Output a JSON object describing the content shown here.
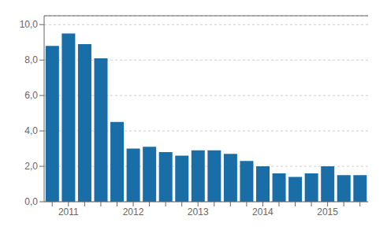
{
  "chart_data": {
    "type": "bar",
    "categories": [
      null,
      "2011",
      null,
      null,
      null,
      "2012",
      null,
      null,
      null,
      "2013",
      null,
      null,
      null,
      "2014",
      null,
      null,
      null,
      "2015",
      null,
      null
    ],
    "values": [
      8.8,
      9.5,
      8.9,
      8.1,
      4.5,
      3.0,
      3.1,
      2.8,
      2.6,
      2.9,
      2.9,
      2.7,
      2.3,
      2.0,
      1.6,
      1.4,
      1.6,
      2.0,
      1.5,
      1.5
    ],
    "color": "#1a6ea8",
    "ylim": [
      0,
      10.5
    ],
    "yticks": [
      {
        "value": 0,
        "label": "0,0"
      },
      {
        "value": 2,
        "label": "2,0"
      },
      {
        "value": 4,
        "label": "4,0"
      },
      {
        "value": 6,
        "label": "6,0"
      },
      {
        "value": 8,
        "label": "8,0"
      },
      {
        "value": 10,
        "label": "10,0"
      }
    ],
    "grid": true
  }
}
